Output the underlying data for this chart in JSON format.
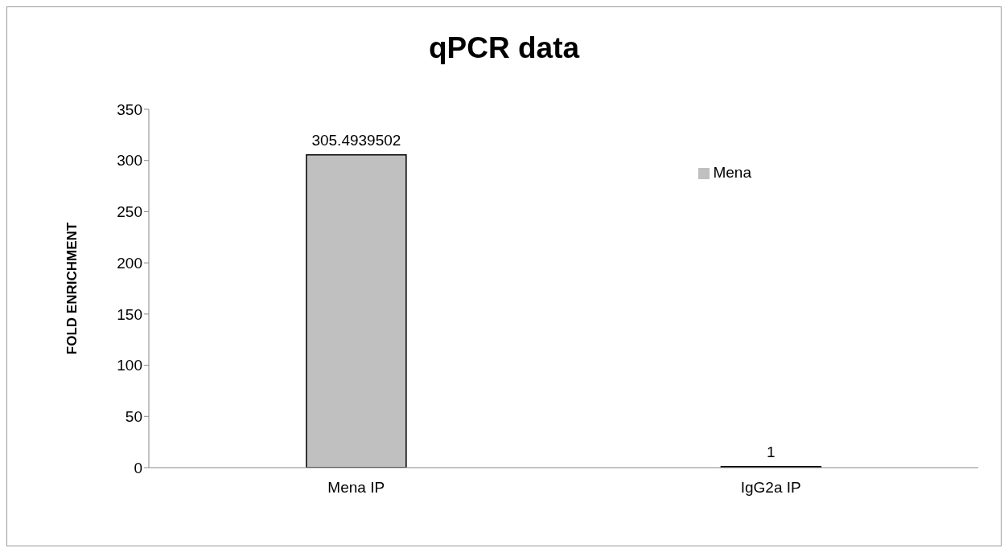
{
  "chart_data": {
    "type": "bar",
    "title": "qPCR data",
    "ylabel": "FOLD ENRICHMENT",
    "categories": [
      "Mena IP",
      "IgG2a IP"
    ],
    "series": [
      {
        "name": "Mena",
        "color": "#c0c0c0",
        "values": [
          305.4939502,
          1
        ]
      }
    ],
    "ylim": [
      0,
      350
    ],
    "yticks": [
      0,
      50,
      100,
      150,
      200,
      250,
      300,
      350
    ],
    "data_labels": true,
    "grid": false,
    "legend": "top right"
  }
}
